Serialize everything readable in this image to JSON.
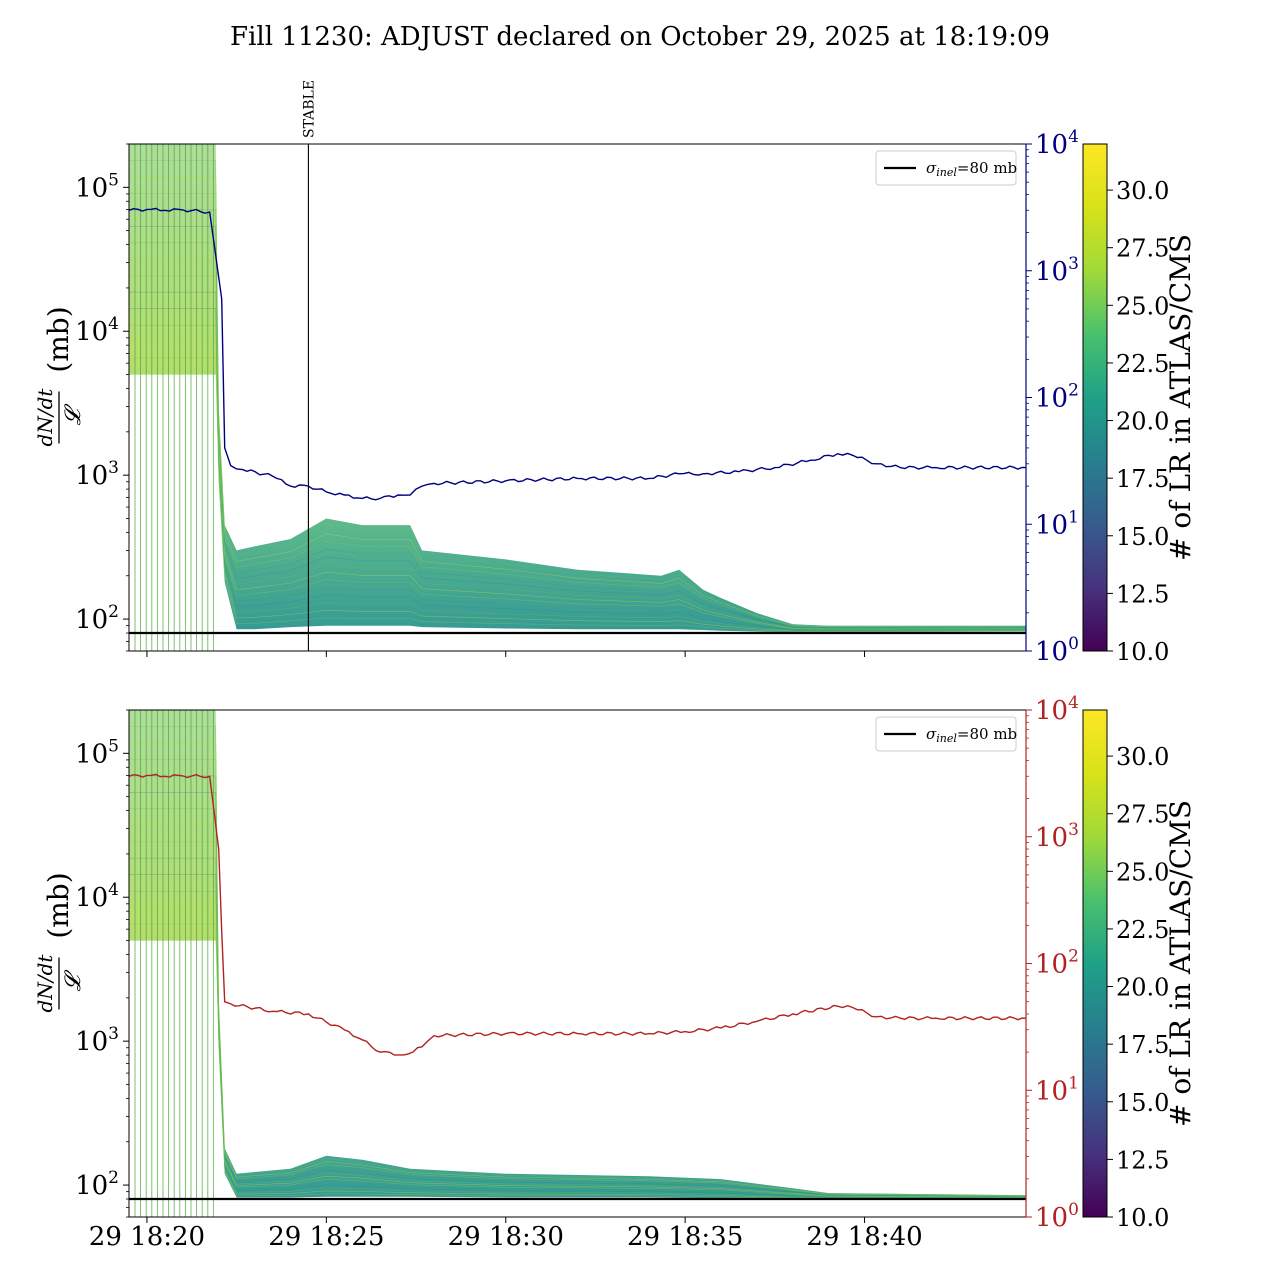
{
  "title": "Fill 11230: ADJUST declared on October 29, 2025 at 18:19:09",
  "colors": {
    "left_axis": "#000000",
    "top_right_axis": "#00007f",
    "bottom_right_axis": "#b22222",
    "reference_line": "#000000"
  },
  "chart_data": [
    {
      "type": "line",
      "panel": "top",
      "ylabel_numerator": "dN/dt",
      "ylabel_denominator": "𝓛",
      "ylabel_unit": "(mb)",
      "yscale": "log",
      "ylim": [
        60,
        200000
      ],
      "yticks": [
        {
          "value": 100,
          "base": "10",
          "exp": "2"
        },
        {
          "value": 1000,
          "base": "10",
          "exp": "3"
        },
        {
          "value": 10000,
          "base": "10",
          "exp": "4"
        },
        {
          "value": 100000,
          "base": "10",
          "exp": "5"
        }
      ],
      "xlim": [
        "18:19:30",
        "18:44:30"
      ],
      "xticks": [
        {
          "time": "18:20",
          "label": "29 18:20"
        },
        {
          "time": "18:25",
          "label": "29 18:25"
        },
        {
          "time": "18:30",
          "label": "29 18:30"
        },
        {
          "time": "18:35",
          "label": "29 18:35"
        },
        {
          "time": "18:40",
          "label": "29 18:40"
        }
      ],
      "legend": {
        "placement": "top-right",
        "label_symbol": "σ",
        "label_sub": "inel",
        "label_rest": "=80 mb"
      },
      "reference_line": {
        "value": 80
      },
      "event_marker": {
        "time": "18:24:30",
        "label": "STABLE"
      },
      "right_axis": {
        "yscale": "log",
        "ylim": [
          1,
          10000
        ],
        "yticks": [
          {
            "value": 1,
            "base": "10",
            "exp": "0"
          },
          {
            "value": 10,
            "base": "10",
            "exp": "1"
          },
          {
            "value": 100,
            "base": "10",
            "exp": "2"
          },
          {
            "value": 1000,
            "base": "10",
            "exp": "3"
          },
          {
            "value": 10000,
            "base": "10",
            "exp": "4"
          }
        ],
        "series": [
          {
            "x": [
              "18:19:30",
              "18:20:00",
              "18:20:30",
              "18:21:00",
              "18:21:45",
              "18:22:05",
              "18:22:10",
              "18:22:20",
              "18:22:40",
              "18:23:30",
              "18:24:00",
              "18:24:30",
              "18:25:00",
              "18:25:30",
              "18:26:00",
              "18:26:30",
              "18:27:00",
              "18:27:20",
              "18:27:40",
              "18:28:00",
              "18:30:00",
              "18:32:00",
              "18:34:00",
              "18:34:50",
              "18:35:30",
              "18:36:30",
              "18:37:30",
              "18:38:30",
              "18:39:15",
              "18:39:40",
              "18:40:20",
              "18:41:00",
              "18:42:00",
              "18:44:30"
            ],
            "y": [
              3000,
              3050,
              3000,
              3020,
              2900,
              600,
              40,
              29,
              27,
              24,
              20,
              20,
              18,
              17,
              16,
              16,
              17,
              17,
              20,
              21,
              22,
              23,
              23,
              25,
              25,
              26,
              28,
              32,
              36,
              35,
              30,
              28,
              28,
              28
            ]
          }
        ]
      },
      "colorbar": {
        "label": "# of LR in ATLAS/CMS",
        "range": [
          10,
          32
        ],
        "ticks": [
          "10.0",
          "12.5",
          "15.0",
          "17.5",
          "20.0",
          "22.5",
          "25.0",
          "27.5",
          "30.0"
        ]
      },
      "bands": [
        {
          "x": [
            "18:19:30",
            "18:21:55",
            "18:22:00",
            "18:22:10",
            "18:22:30",
            "18:23:00",
            "18:24:00",
            "18:25:00",
            "18:26:00",
            "18:27:20",
            "18:27:40",
            "18:30:00",
            "18:32:00",
            "18:34:20",
            "18:34:50",
            "18:35:30",
            "18:36:00",
            "18:37:00",
            "18:38:00",
            "18:39:00",
            "18:44:30"
          ],
          "low": [
            5000,
            5000,
            900,
            180,
            85,
            85,
            88,
            90,
            90,
            90,
            88,
            86,
            85,
            85,
            85,
            84,
            83,
            82,
            81,
            81,
            82
          ],
          "high": [
            200000,
            200000,
            3000,
            450,
            300,
            320,
            360,
            500,
            450,
            450,
            300,
            260,
            220,
            200,
            220,
            160,
            140,
            110,
            92,
            90,
            90
          ]
        }
      ]
    },
    {
      "type": "line",
      "panel": "bottom",
      "ylabel_numerator": "dN/dt",
      "ylabel_denominator": "𝓛",
      "ylabel_unit": "(mb)",
      "yscale": "log",
      "ylim": [
        60,
        200000
      ],
      "yticks": [
        {
          "value": 100,
          "base": "10",
          "exp": "2"
        },
        {
          "value": 1000,
          "base": "10",
          "exp": "3"
        },
        {
          "value": 10000,
          "base": "10",
          "exp": "4"
        },
        {
          "value": 100000,
          "base": "10",
          "exp": "5"
        }
      ],
      "xlim": [
        "18:19:30",
        "18:44:30"
      ],
      "xticks": [
        {
          "time": "18:20",
          "label": "29 18:20"
        },
        {
          "time": "18:25",
          "label": "29 18:25"
        },
        {
          "time": "18:30",
          "label": "29 18:30"
        },
        {
          "time": "18:35",
          "label": "29 18:35"
        },
        {
          "time": "18:40",
          "label": "29 18:40"
        }
      ],
      "legend": {
        "placement": "top-right",
        "label_symbol": "σ",
        "label_sub": "inel",
        "label_rest": "=80 mb"
      },
      "reference_line": {
        "value": 80
      },
      "right_axis": {
        "yscale": "log",
        "ylim": [
          1,
          10000
        ],
        "yticks": [
          {
            "value": 1,
            "base": "10",
            "exp": "0"
          },
          {
            "value": 10,
            "base": "10",
            "exp": "1"
          },
          {
            "value": 100,
            "base": "10",
            "exp": "2"
          },
          {
            "value": 1000,
            "base": "10",
            "exp": "3"
          },
          {
            "value": 10000,
            "base": "10",
            "exp": "4"
          }
        ],
        "series": [
          {
            "x": [
              "18:19:30",
              "18:20:00",
              "18:20:30",
              "18:21:00",
              "18:21:45",
              "18:22:00",
              "18:22:05",
              "18:22:10",
              "18:22:20",
              "18:23:30",
              "18:24:30",
              "18:25:30",
              "18:26:00",
              "18:26:30",
              "18:27:10",
              "18:27:40",
              "18:28:00",
              "18:30:00",
              "18:32:00",
              "18:34:00",
              "18:35:00",
              "18:36:00",
              "18:37:00",
              "18:38:00",
              "18:39:15",
              "18:39:40",
              "18:40:20",
              "18:41:00",
              "18:42:00",
              "18:44:30"
            ],
            "y": [
              3000,
              3050,
              3000,
              3020,
              3000,
              800,
              180,
              50,
              48,
              42,
              40,
              30,
              25,
              20,
              19,
              22,
              27,
              28,
              28,
              28,
              29,
              31,
              35,
              40,
              46,
              45,
              38,
              37,
              37,
              37
            ]
          }
        ]
      },
      "colorbar": {
        "label": "# of LR in ATLAS/CMS",
        "range": [
          10,
          32
        ],
        "ticks": [
          "10.0",
          "12.5",
          "15.0",
          "17.5",
          "20.0",
          "22.5",
          "25.0",
          "27.5",
          "30.0"
        ]
      },
      "bands": [
        {
          "x": [
            "18:19:30",
            "18:21:55",
            "18:22:00",
            "18:22:10",
            "18:22:30",
            "18:24:00",
            "18:25:00",
            "18:26:00",
            "18:27:20",
            "18:30:00",
            "18:34:00",
            "18:36:00",
            "18:38:00",
            "18:39:00",
            "18:44:30"
          ],
          "low": [
            5000,
            5000,
            900,
            120,
            82,
            82,
            83,
            83,
            83,
            82,
            82,
            81,
            80,
            80,
            80
          ],
          "high": [
            200000,
            200000,
            2000,
            180,
            120,
            130,
            160,
            150,
            130,
            120,
            115,
            110,
            95,
            88,
            85
          ]
        }
      ]
    }
  ]
}
